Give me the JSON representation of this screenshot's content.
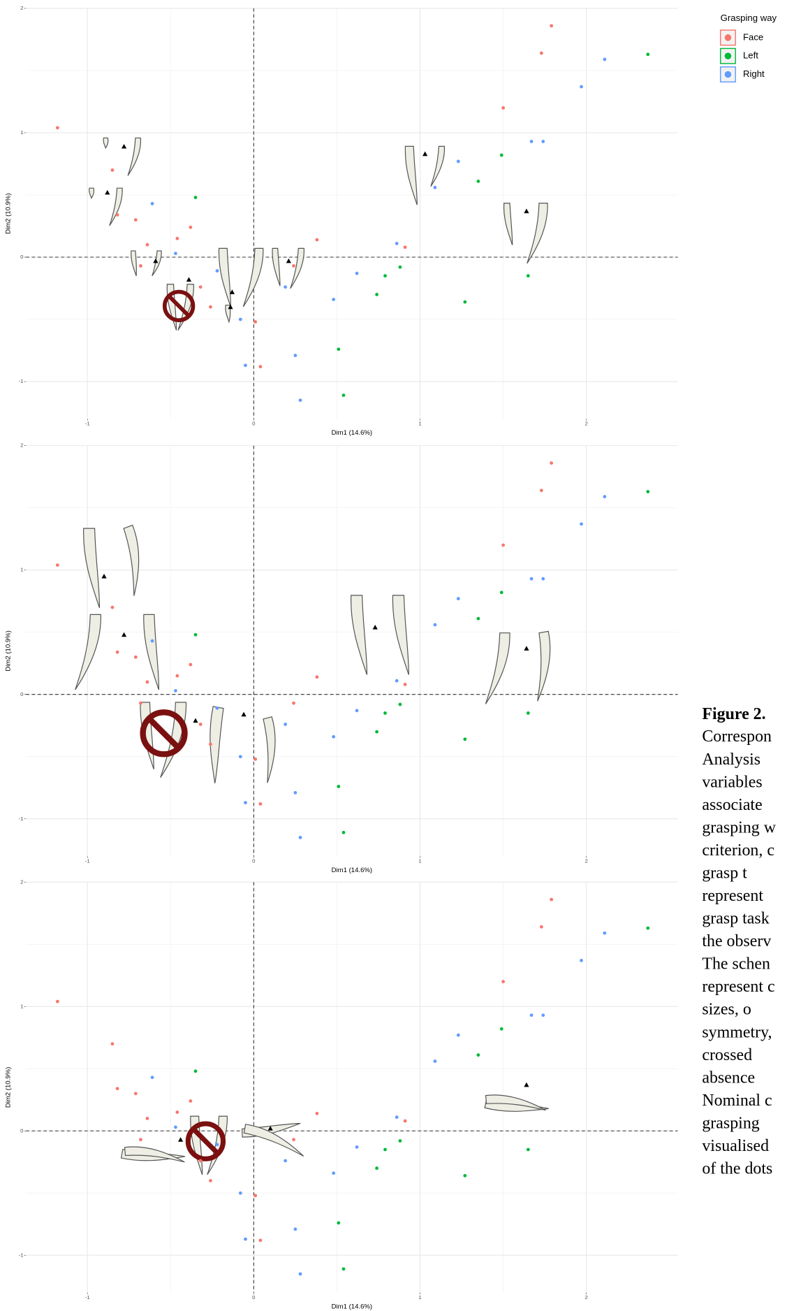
{
  "chart_data": [
    {
      "type": "scatter",
      "x_label": "Dim1 (14.6%)",
      "y_label": "Dim2 (10.9%)",
      "xlim": [
        -1.37,
        2.55
      ],
      "ylim": [
        -1.3,
        2
      ],
      "xticks": [
        -1,
        0,
        1,
        2
      ],
      "yticks": [
        -1,
        0,
        1,
        2
      ],
      "minor_xticks": [
        -0.5,
        0.5,
        1.5
      ],
      "minor_yticks": [
        -0.5,
        0.5,
        1.5
      ],
      "hline": 0,
      "vline": 0,
      "grid": true,
      "legend": {
        "title": "Grasping way",
        "position": "right"
      },
      "series": [
        {
          "name": "Face",
          "color": "#F8766D",
          "x": [
            -1.18,
            -0.85,
            -0.82,
            -0.71,
            -0.64,
            -0.68,
            -0.46,
            -0.38,
            -0.32,
            -0.26,
            0.01,
            0.04,
            0.24,
            0.38,
            0.91,
            1.5,
            1.73,
            1.79
          ],
          "y": [
            1.04,
            0.7,
            0.34,
            0.3,
            0.1,
            -0.07,
            0.15,
            0.24,
            -0.24,
            -0.4,
            -0.52,
            -0.88,
            -0.07,
            0.14,
            0.08,
            1.2,
            1.64,
            1.86
          ]
        },
        {
          "name": "Left",
          "color": "#00BA38",
          "x": [
            -0.35,
            0.79,
            0.88,
            0.74,
            0.51,
            0.54,
            1.27,
            1.35,
            1.49,
            1.65,
            2.37
          ],
          "y": [
            0.48,
            -0.15,
            -0.08,
            -0.3,
            -0.74,
            -1.11,
            -0.36,
            0.61,
            0.82,
            -0.15,
            1.63
          ]
        },
        {
          "name": "Right",
          "color": "#619CFF",
          "x": [
            -0.61,
            -0.47,
            -0.22,
            -0.08,
            -0.05,
            0.19,
            0.25,
            0.28,
            0.48,
            0.62,
            0.86,
            1.09,
            1.23,
            1.67,
            1.74,
            1.97,
            2.11
          ],
          "y": [
            0.43,
            0.03,
            -0.11,
            -0.5,
            -0.87,
            -0.24,
            -0.79,
            -1.15,
            -0.34,
            -0.13,
            0.11,
            0.56,
            0.77,
            0.93,
            0.93,
            1.37,
            1.59
          ]
        }
      ],
      "markers": {
        "color": "#000000",
        "x": [
          -0.78,
          -0.88,
          -0.59,
          -0.39,
          -0.13,
          -0.14,
          0.21,
          1.03,
          1.64
        ],
        "y": [
          0.89,
          0.52,
          -0.03,
          -0.18,
          -0.28,
          -0.4,
          -0.03,
          0.83,
          0.37
        ]
      }
    },
    {
      "type": "scatter",
      "x_label": "Dim1 (14.6%)",
      "y_label": "Dim2 (10.9%)",
      "xlim": [
        -1.37,
        2.55
      ],
      "ylim": [
        -1.3,
        2
      ],
      "xticks": [
        -1,
        0,
        1,
        2
      ],
      "yticks": [
        -1,
        0,
        1,
        2
      ],
      "minor_xticks": [
        -0.5,
        0.5,
        1.5
      ],
      "minor_yticks": [
        -0.5,
        0.5,
        1.5
      ],
      "hline": 0,
      "vline": 0,
      "grid": true,
      "series": [
        {
          "name": "Face",
          "color": "#F8766D",
          "x": [
            -1.18,
            -0.85,
            -0.82,
            -0.71,
            -0.64,
            -0.68,
            -0.46,
            -0.38,
            -0.32,
            -0.26,
            0.01,
            0.04,
            0.24,
            0.38,
            0.91,
            1.5,
            1.73,
            1.79
          ],
          "y": [
            1.04,
            0.7,
            0.34,
            0.3,
            0.1,
            -0.07,
            0.15,
            0.24,
            -0.24,
            -0.4,
            -0.52,
            -0.88,
            -0.07,
            0.14,
            0.08,
            1.2,
            1.64,
            1.86
          ]
        },
        {
          "name": "Left",
          "color": "#00BA38",
          "x": [
            -0.35,
            0.79,
            0.88,
            0.74,
            0.51,
            0.54,
            1.27,
            1.35,
            1.49,
            1.65,
            2.37
          ],
          "y": [
            0.48,
            -0.15,
            -0.08,
            -0.3,
            -0.74,
            -1.11,
            -0.36,
            0.61,
            0.82,
            -0.15,
            1.63
          ]
        },
        {
          "name": "Right",
          "color": "#619CFF",
          "x": [
            -0.61,
            -0.47,
            -0.22,
            -0.08,
            -0.05,
            0.19,
            0.25,
            0.28,
            0.48,
            0.62,
            0.86,
            1.09,
            1.23,
            1.67,
            1.74,
            1.97,
            2.11
          ],
          "y": [
            0.43,
            0.03,
            -0.11,
            -0.5,
            -0.87,
            -0.24,
            -0.79,
            -1.15,
            -0.34,
            -0.13,
            0.11,
            0.56,
            0.77,
            0.93,
            0.93,
            1.37,
            1.59
          ]
        }
      ],
      "markers": {
        "color": "#000000",
        "x": [
          -0.9,
          -0.78,
          -0.35,
          -0.06,
          0.73,
          1.64
        ],
        "y": [
          0.95,
          0.48,
          -0.21,
          -0.16,
          0.54,
          0.37
        ]
      }
    },
    {
      "type": "scatter",
      "x_label": "Dim1 (14.6%)",
      "y_label": "Dim2 (10.9%)",
      "xlim": [
        -1.37,
        2.55
      ],
      "ylim": [
        -1.3,
        2
      ],
      "xticks": [
        -1,
        0,
        1,
        2
      ],
      "yticks": [
        -1,
        0,
        1,
        2
      ],
      "minor_xticks": [
        -0.5,
        0.5,
        1.5
      ],
      "minor_yticks": [
        -0.5,
        0.5,
        1.5
      ],
      "hline": 0,
      "vline": 0,
      "grid": true,
      "series": [
        {
          "name": "Face",
          "color": "#F8766D",
          "x": [
            -1.18,
            -0.85,
            -0.82,
            -0.71,
            -0.64,
            -0.68,
            -0.46,
            -0.38,
            -0.32,
            -0.26,
            0.01,
            0.04,
            0.24,
            0.38,
            0.91,
            1.5,
            1.73,
            1.79
          ],
          "y": [
            1.04,
            0.7,
            0.34,
            0.3,
            0.1,
            -0.07,
            0.15,
            0.24,
            -0.24,
            -0.4,
            -0.52,
            -0.88,
            -0.07,
            0.14,
            0.08,
            1.2,
            1.64,
            1.86
          ]
        },
        {
          "name": "Left",
          "color": "#00BA38",
          "x": [
            -0.35,
            0.79,
            0.88,
            0.74,
            0.51,
            0.54,
            1.27,
            1.35,
            1.49,
            1.65,
            2.37
          ],
          "y": [
            0.48,
            -0.15,
            -0.08,
            -0.3,
            -0.74,
            -1.11,
            -0.36,
            0.61,
            0.82,
            -0.15,
            1.63
          ]
        },
        {
          "name": "Right",
          "color": "#619CFF",
          "x": [
            -0.61,
            -0.47,
            -0.22,
            -0.08,
            -0.05,
            0.19,
            0.25,
            0.28,
            0.48,
            0.62,
            0.86,
            1.09,
            1.23,
            1.67,
            1.74,
            1.97,
            2.11
          ],
          "y": [
            0.43,
            0.03,
            -0.11,
            -0.5,
            -0.87,
            -0.24,
            -0.79,
            -1.15,
            -0.34,
            -0.13,
            0.11,
            0.56,
            0.77,
            0.93,
            0.93,
            1.37,
            1.59
          ]
        }
      ],
      "markers": {
        "color": "#000000",
        "x": [
          -0.44,
          0.1,
          1.64
        ],
        "y": [
          -0.07,
          0.02,
          0.37
        ]
      }
    }
  ],
  "caption": {
    "title": "Figure 2.",
    "lines": [
      "Correspon",
      "Analysis",
      "variables",
      "associate",
      "grasping w",
      "criterion, c",
      "grasp t",
      "represent",
      "grasp task",
      "the observ",
      "The schen",
      "represent c",
      "sizes, o",
      "symmetry,",
      "crossed",
      "absence",
      "Nominal c",
      "grasping",
      "visualised",
      "of the dots"
    ]
  }
}
